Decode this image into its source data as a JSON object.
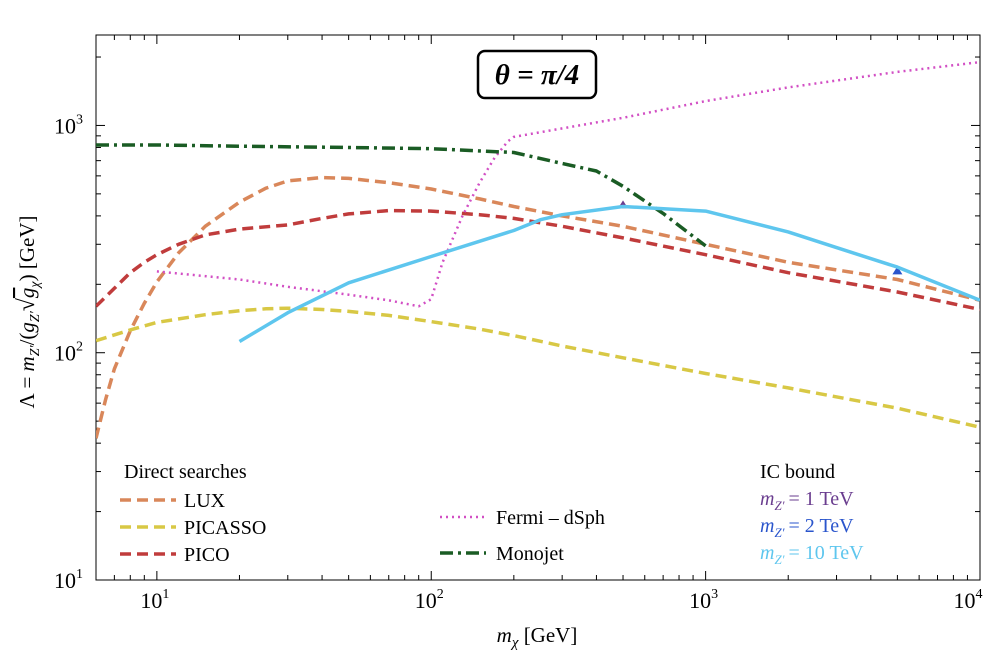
{
  "chart_data": {
    "type": "line",
    "title": "θ = π/4",
    "xlabel": "m_χ [GeV]",
    "ylabel": "Λ = m_Z′/(g_Z′ √g_χ) [GeV]",
    "x_scale": "log",
    "y_scale": "log",
    "xlim": [
      6,
      10000
    ],
    "ylim": [
      10,
      2500
    ],
    "x_ticks": [
      {
        "value": 10,
        "base": "10",
        "exp": "1"
      },
      {
        "value": 100,
        "base": "10",
        "exp": "2"
      },
      {
        "value": 1000,
        "base": "10",
        "exp": "3"
      },
      {
        "value": 10000,
        "base": "10",
        "exp": "4"
      }
    ],
    "y_ticks": [
      {
        "value": 10,
        "base": "10",
        "exp": "1"
      },
      {
        "value": 100,
        "base": "10",
        "exp": "2"
      },
      {
        "value": 1000,
        "base": "10",
        "exp": "3"
      }
    ],
    "grid": false,
    "series": [
      {
        "name": "LUX",
        "group": "Direct searches",
        "color": "#d9875a",
        "style": "dashed",
        "x": [
          6,
          6.5,
          7,
          8,
          9,
          10,
          12,
          15,
          20,
          25,
          30,
          40,
          50,
          70,
          100,
          150,
          200,
          300,
          500,
          1000,
          2000,
          5000,
          10000
        ],
        "y": [
          42,
          62,
          85,
          125,
          165,
          205,
          275,
          360,
          460,
          530,
          570,
          590,
          585,
          560,
          525,
          475,
          440,
          400,
          360,
          300,
          250,
          210,
          170
        ]
      },
      {
        "name": "PICASSO",
        "group": "Direct searches",
        "color": "#d8c845",
        "style": "dashed",
        "x": [
          6,
          8,
          10,
          15,
          20,
          25,
          30,
          40,
          50,
          70,
          100,
          150,
          200,
          300,
          500,
          1000,
          2000,
          5000,
          10000
        ],
        "y": [
          113,
          126,
          136,
          147,
          153,
          156,
          157,
          155,
          152,
          146,
          137,
          127,
          119,
          107,
          95,
          81,
          70,
          57,
          47
        ]
      },
      {
        "name": "PICO",
        "group": "Direct searches",
        "color": "#c03c3c",
        "style": "dashed",
        "x": [
          6,
          7,
          8,
          9,
          10,
          12,
          15,
          20,
          30,
          40,
          50,
          70,
          100,
          150,
          200,
          300,
          500,
          1000,
          2000,
          5000,
          10000
        ],
        "y": [
          160,
          192,
          225,
          250,
          270,
          300,
          330,
          350,
          365,
          390,
          408,
          422,
          420,
          405,
          390,
          360,
          320,
          270,
          225,
          185,
          155
        ]
      },
      {
        "name": "Fermi – dSph",
        "color": "#d24fc4",
        "style": "dotted",
        "x": [
          10,
          20,
          30,
          50,
          70,
          90,
          100,
          110,
          130,
          150,
          170,
          190,
          200,
          300,
          500,
          1000,
          2000,
          5000,
          10000
        ],
        "y": [
          228,
          210,
          195,
          180,
          170,
          160,
          172,
          250,
          400,
          560,
          720,
          850,
          890,
          970,
          1080,
          1280,
          1470,
          1720,
          1900
        ]
      },
      {
        "name": "Monojet",
        "color": "#1a5c24",
        "style": "dashdot",
        "x": [
          6,
          10,
          20,
          50,
          100,
          200,
          300,
          400,
          500,
          700,
          1000
        ],
        "y": [
          820,
          820,
          810,
          800,
          790,
          760,
          680,
          630,
          540,
          410,
          295
        ]
      },
      {
        "name": "m_Z′ = 1 TeV",
        "group": "IC bound",
        "color": "#6a3d8f",
        "style": "solid",
        "x": [
          500
        ],
        "y": [
          445
        ]
      },
      {
        "name": "m_Z′ = 2 TeV",
        "group": "IC bound",
        "color": "#2a55cc",
        "style": "solid",
        "x": [
          5000
        ],
        "y": [
          228
        ]
      },
      {
        "name": "m_Z′ = 10 TeV",
        "group": "IC bound",
        "color": "#5ec6ee",
        "style": "solid",
        "x": [
          20,
          30,
          50,
          100,
          200,
          250,
          300,
          500,
          1000,
          2000,
          3000,
          5000,
          10000
        ],
        "y": [
          112,
          150,
          203,
          265,
          345,
          385,
          405,
          440,
          420,
          340,
          290,
          238,
          170
        ]
      }
    ]
  },
  "legend": {
    "direct_heading": "Direct searches",
    "ic_heading": "IC bound",
    "entries": {
      "lux": "LUX",
      "picasso": "PICASSO",
      "pico": "PICO",
      "fermi": "Fermi – dSph",
      "monojet": "Monojet",
      "ic1": "= 1 TeV",
      "ic2": "= 2 TeV",
      "ic10": "= 10 TeV"
    },
    "mz_symbol": "m",
    "mz_sub": "Z′"
  },
  "axis_label_parts": {
    "x_sym": "m",
    "x_sub": "χ",
    "x_unit": " [GeV]",
    "y_text": "Λ = ",
    "y_m": "m",
    "y_sub1": "Z′",
    "y_mid": "/(",
    "y_g": "g",
    "y_sub2": "Z′",
    "y_sqrt": "√",
    "y_g2": "g",
    "y_sub3": "χ",
    "y_tail": ") [GeV]"
  }
}
